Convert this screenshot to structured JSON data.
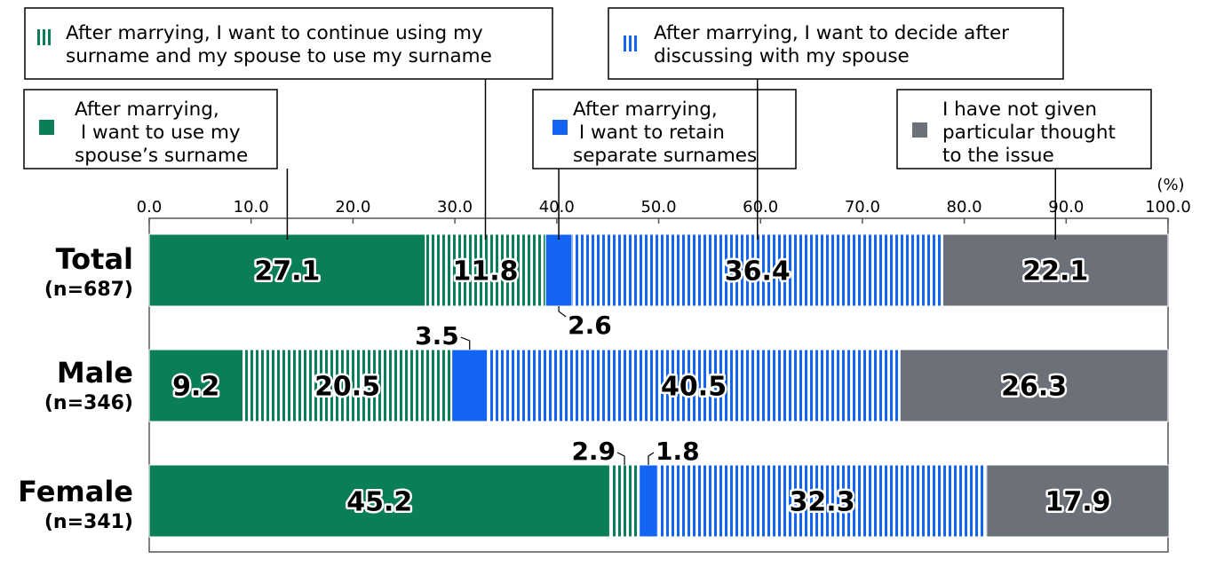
{
  "chart_data": {
    "type": "bar",
    "orientation": "horizontal",
    "stacked": true,
    "unit_label": "(%)",
    "xlim": [
      0,
      100
    ],
    "ticks": [
      "0.0",
      "10.0",
      "20.0",
      "30.0",
      "40.0",
      "50.0",
      "60.0",
      "70.0",
      "80.0",
      "90.0",
      "100.0"
    ],
    "categories": [
      {
        "name": "Total",
        "n": "(n=687)"
      },
      {
        "name": "Male",
        "n": "(n=346)"
      },
      {
        "name": "Female",
        "n": "(n=341)"
      }
    ],
    "series": [
      {
        "name": "After marrying,\n I want to use my\nspouse’s surname",
        "values": [
          27.1,
          9.2,
          45.2
        ],
        "labels": [
          "27.1",
          "9.2",
          "45.2"
        ],
        "color": "#0a7f55",
        "pattern": "solid"
      },
      {
        "name": "After marrying, I want to continue using my\nsurname and my spouse to use my surname",
        "values": [
          11.8,
          20.5,
          2.9
        ],
        "labels": [
          "11.8",
          "20.5",
          "2.9"
        ],
        "color": "#0a7f55",
        "pattern": "vertical-stripes"
      },
      {
        "name": "After marrying,\n I want to retain\nseparate surnames",
        "values": [
          2.6,
          3.5,
          1.8
        ],
        "labels": [
          "2.6",
          "3.5",
          "1.8"
        ],
        "color": "#1464f4",
        "pattern": "solid"
      },
      {
        "name": "After marrying, I want to decide after\ndiscussing with my spouse",
        "values": [
          36.4,
          40.5,
          32.3
        ],
        "labels": [
          "36.4",
          "40.5",
          "32.3"
        ],
        "color": "#1464f4",
        "pattern": "vertical-stripes"
      },
      {
        "name": "I have not given\nparticular thought\nto the issue",
        "values": [
          22.1,
          26.3,
          17.9
        ],
        "labels": [
          "22.1",
          "26.3",
          "17.9"
        ],
        "color": "#6b7079",
        "pattern": "solid"
      }
    ],
    "grid": false,
    "legend": "top, callout boxes"
  }
}
